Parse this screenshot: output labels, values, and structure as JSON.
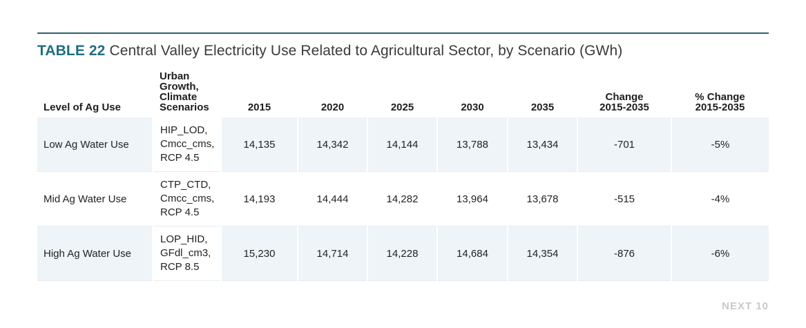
{
  "table_number": "TABLE 22",
  "title": "Central Valley Electricity Use Related to Agricultural Sector, by Scenario (GWh)",
  "headers": {
    "level": "Level of Ag Use",
    "scenarios": [
      "Urban",
      "Growth,",
      "Climate",
      "Scenarios"
    ],
    "y2015": "2015",
    "y2020": "2020",
    "y2025": "2025",
    "y2030": "2030",
    "y2035": "2035",
    "change": [
      "Change",
      "2015-2035"
    ],
    "pct_change": [
      "% Change",
      "2015-2035"
    ]
  },
  "rows": [
    {
      "level": "Low Ag Water Use",
      "scenario": [
        "HIP_LOD,",
        "Cmcc_cms,",
        "RCP 4.5"
      ],
      "v2015": "14,135",
      "v2020": "14,342",
      "v2025": "14,144",
      "v2030": "13,788",
      "v2035": "13,434",
      "change": "-701",
      "pct": "-5%"
    },
    {
      "level": "Mid Ag Water Use",
      "scenario": [
        "CTP_CTD,",
        "Cmcc_cms,",
        "RCP 4.5"
      ],
      "v2015": "14,193",
      "v2020": "14,444",
      "v2025": "14,282",
      "v2030": "13,964",
      "v2035": "13,678",
      "change": "-515",
      "pct": "-4%"
    },
    {
      "level": "High Ag Water Use",
      "scenario": [
        "LOP_HID,",
        "GFdl_cm3,",
        "RCP 8.5"
      ],
      "v2015": "15,230",
      "v2020": "14,714",
      "v2025": "14,228",
      "v2030": "14,684",
      "v2035": "14,354",
      "change": "-876",
      "pct": "-6%"
    }
  ],
  "footer": "NEXT 10",
  "colors": {
    "accent": "#1f6e82",
    "rule": "#2e5e6e",
    "row_shade": "#eef4f7",
    "footer": "#c7c9cb"
  }
}
